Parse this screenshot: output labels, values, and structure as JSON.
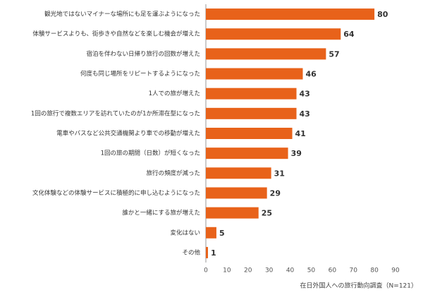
{
  "chart_data": {
    "type": "hbar",
    "note": "在日外国人への旅行動向調査（N=121）",
    "categories": [
      "観光地ではないマイナーな場所にも足を運ぶようになった",
      "体験サービスよりも、街歩きや自然などを楽しむ機会が増えた",
      "宿泊を伴わない日帰り旅行の回数が増えた",
      "何度も同じ場所をリピートするようになった",
      "1人での旅が増えた",
      "1回の旅行で複数エリアを訪れていたのが1か所滞在型になった",
      "電車やバスなど公共交通機関より車での移動が増えた",
      "1回の旅の期間（日数）が短くなった",
      "旅行の頻度が減った",
      "文化体験などの体験サービスに積極的に申し込むようになった",
      "誰かと一緒にする旅が増えた",
      "変化はない",
      "その他"
    ],
    "values": [
      80,
      64,
      57,
      46,
      43,
      43,
      41,
      39,
      31,
      29,
      25,
      5,
      1
    ],
    "color": "#e8621a",
    "xlim": [
      0,
      90
    ],
    "xticks": [
      0,
      10,
      20,
      30,
      40,
      50,
      60,
      70,
      80,
      90
    ]
  }
}
